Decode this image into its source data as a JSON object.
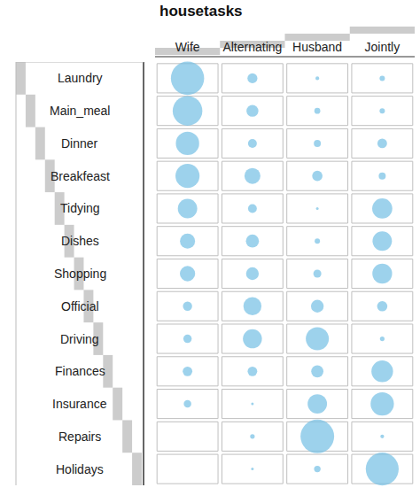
{
  "chart_data": {
    "type": "bubble",
    "title": "housetasks",
    "columns": [
      "Wife",
      "Alternating",
      "Husband",
      "Jointly"
    ],
    "rows": [
      "Laundry",
      "Main_meal",
      "Dinner",
      "Breakfeast",
      "Tidying",
      "Dishes",
      "Shopping",
      "Official",
      "Driving",
      "Finances",
      "Insurance",
      "Repairs",
      "Holidays"
    ],
    "sizes": [
      [
        156,
        14,
        2,
        4
      ],
      [
        124,
        20,
        5,
        4
      ],
      [
        77,
        11,
        7,
        13
      ],
      [
        82,
        36,
        15,
        7
      ],
      [
        53,
        11,
        1,
        57
      ],
      [
        32,
        24,
        4,
        53
      ],
      [
        33,
        23,
        9,
        55
      ],
      [
        12,
        46,
        23,
        15
      ],
      [
        10,
        51,
        75,
        3
      ],
      [
        13,
        13,
        21,
        66
      ],
      [
        8,
        1,
        53,
        77
      ],
      [
        0,
        3,
        160,
        2
      ],
      [
        0,
        1,
        6,
        153
      ]
    ],
    "color": "#74bfe4"
  }
}
